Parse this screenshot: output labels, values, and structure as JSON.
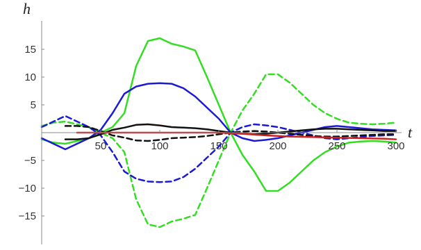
{
  "chart_data": {
    "type": "line",
    "title": "",
    "xlabel": "t",
    "ylabel": "h",
    "xlim": [
      0,
      300
    ],
    "ylim": [
      -18,
      18
    ],
    "xticks": [
      50,
      100,
      150,
      200,
      250,
      300
    ],
    "yticks": [
      -15,
      -10,
      -5,
      5,
      10,
      15
    ],
    "xtick_labels": [
      "50",
      "100",
      "150",
      "200",
      "250",
      "300"
    ],
    "ytick_labels": [
      "−15",
      "−10",
      "−5",
      "5",
      "10",
      "15"
    ],
    "grid": false,
    "legend": "none",
    "series": [
      {
        "color": "#33dd22",
        "dash": false,
        "x": [
          0,
          10,
          20,
          30,
          40,
          50,
          60,
          70,
          80,
          90,
          100,
          110,
          120,
          130,
          140,
          150,
          160,
          170,
          180,
          190,
          200,
          210,
          220,
          230,
          240,
          250,
          260,
          270,
          280,
          290,
          300
        ],
        "y": [
          -1.2,
          -1.8,
          -2.0,
          -1.5,
          -1.0,
          0.0,
          1.0,
          3.5,
          12.0,
          16.5,
          17.0,
          16.0,
          15.5,
          14.8,
          10.0,
          5.0,
          0.0,
          -4.0,
          -7.0,
          -10.5,
          -10.5,
          -9.0,
          -7.0,
          -5.0,
          -3.5,
          -2.5,
          -1.8,
          -1.6,
          -1.5,
          -1.6,
          -1.8
        ]
      },
      {
        "color": "#33dd22",
        "dash": true,
        "x": [
          0,
          10,
          20,
          30,
          40,
          50,
          60,
          70,
          80,
          90,
          100,
          110,
          120,
          130,
          140,
          150,
          160,
          170,
          180,
          190,
          200,
          210,
          220,
          230,
          240,
          250,
          260,
          270,
          280,
          290,
          300
        ],
        "y": [
          1.2,
          1.8,
          2.0,
          1.5,
          1.0,
          0.0,
          -1.0,
          -3.5,
          -12.0,
          -16.5,
          -17.0,
          -16.0,
          -15.5,
          -14.8,
          -10.0,
          -5.0,
          0.0,
          4.0,
          7.0,
          10.5,
          10.5,
          9.0,
          7.0,
          5.0,
          3.5,
          2.5,
          1.8,
          1.6,
          1.5,
          1.6,
          1.8
        ]
      },
      {
        "color": "#1a1ad6",
        "dash": false,
        "x": [
          0,
          10,
          20,
          30,
          40,
          50,
          60,
          70,
          80,
          90,
          100,
          110,
          120,
          130,
          140,
          150,
          160,
          170,
          180,
          190,
          200,
          210,
          220,
          230,
          240,
          250,
          260,
          270,
          280,
          290,
          300
        ],
        "y": [
          -1.0,
          -2.0,
          -3.0,
          -2.0,
          -1.0,
          0.5,
          3.5,
          7.0,
          8.3,
          8.8,
          8.9,
          8.8,
          8.0,
          6.5,
          4.5,
          2.5,
          0.0,
          -1.0,
          -1.5,
          -1.3,
          -1.0,
          -0.5,
          0.0,
          0.5,
          1.0,
          1.2,
          1.0,
          0.8,
          0.6,
          0.5,
          0.4
        ]
      },
      {
        "color": "#1a1ad6",
        "dash": true,
        "x": [
          0,
          10,
          20,
          30,
          40,
          50,
          60,
          70,
          80,
          90,
          100,
          110,
          120,
          130,
          140,
          150,
          160,
          170,
          180,
          190,
          200,
          210,
          220,
          230,
          240,
          250,
          260,
          270,
          280,
          290,
          300
        ],
        "y": [
          1.0,
          2.0,
          3.0,
          2.0,
          1.0,
          -0.5,
          -3.5,
          -7.0,
          -8.3,
          -8.8,
          -8.9,
          -8.8,
          -8.0,
          -6.5,
          -4.5,
          -2.5,
          0.0,
          1.0,
          1.5,
          1.3,
          1.0,
          0.5,
          0.0,
          -0.5,
          -1.0,
          -1.2,
          -1.0,
          -0.8,
          -0.6,
          -0.5,
          -0.4
        ]
      },
      {
        "color": "#111111",
        "dash": false,
        "x": [
          20,
          30,
          40,
          50,
          60,
          70,
          80,
          90,
          100,
          110,
          120,
          130,
          140,
          150,
          160,
          170,
          180,
          190,
          200,
          210,
          220,
          230,
          240,
          250,
          260,
          270,
          280,
          290,
          300
        ],
        "y": [
          -1.2,
          -1.2,
          -1.0,
          -0.3,
          0.5,
          0.9,
          1.4,
          1.5,
          1.3,
          1.0,
          0.9,
          0.8,
          0.6,
          0.3,
          0.0,
          -0.2,
          -0.3,
          -0.2,
          0.0,
          0.2,
          0.4,
          0.6,
          0.7,
          0.7,
          0.6,
          0.5,
          0.4,
          0.3,
          0.3
        ]
      },
      {
        "color": "#111111",
        "dash": true,
        "x": [
          20,
          30,
          40,
          50,
          60,
          70,
          80,
          90,
          100,
          110,
          120,
          130,
          140,
          150,
          160,
          170,
          180,
          190,
          200,
          210,
          220,
          230,
          240,
          250,
          260,
          270,
          280,
          290,
          300
        ],
        "y": [
          1.2,
          1.2,
          1.0,
          0.3,
          -0.5,
          -0.9,
          -1.4,
          -1.5,
          -1.3,
          -1.0,
          -0.9,
          -0.8,
          -0.6,
          -0.3,
          0.0,
          0.2,
          0.3,
          0.2,
          0.0,
          -0.2,
          -0.4,
          -0.6,
          -0.7,
          -0.7,
          -0.6,
          -0.5,
          -0.4,
          -0.3,
          -0.3
        ]
      },
      {
        "color": "#cc2222",
        "dash": false,
        "x": [
          30,
          60,
          90,
          120,
          150,
          170,
          190,
          210,
          230,
          250,
          270,
          290,
          300
        ],
        "y": [
          0.0,
          0.0,
          0.0,
          0.0,
          0.0,
          -0.2,
          -0.5,
          -0.7,
          -0.8,
          -0.9,
          -1.0,
          -1.1,
          -1.2
        ]
      }
    ]
  }
}
